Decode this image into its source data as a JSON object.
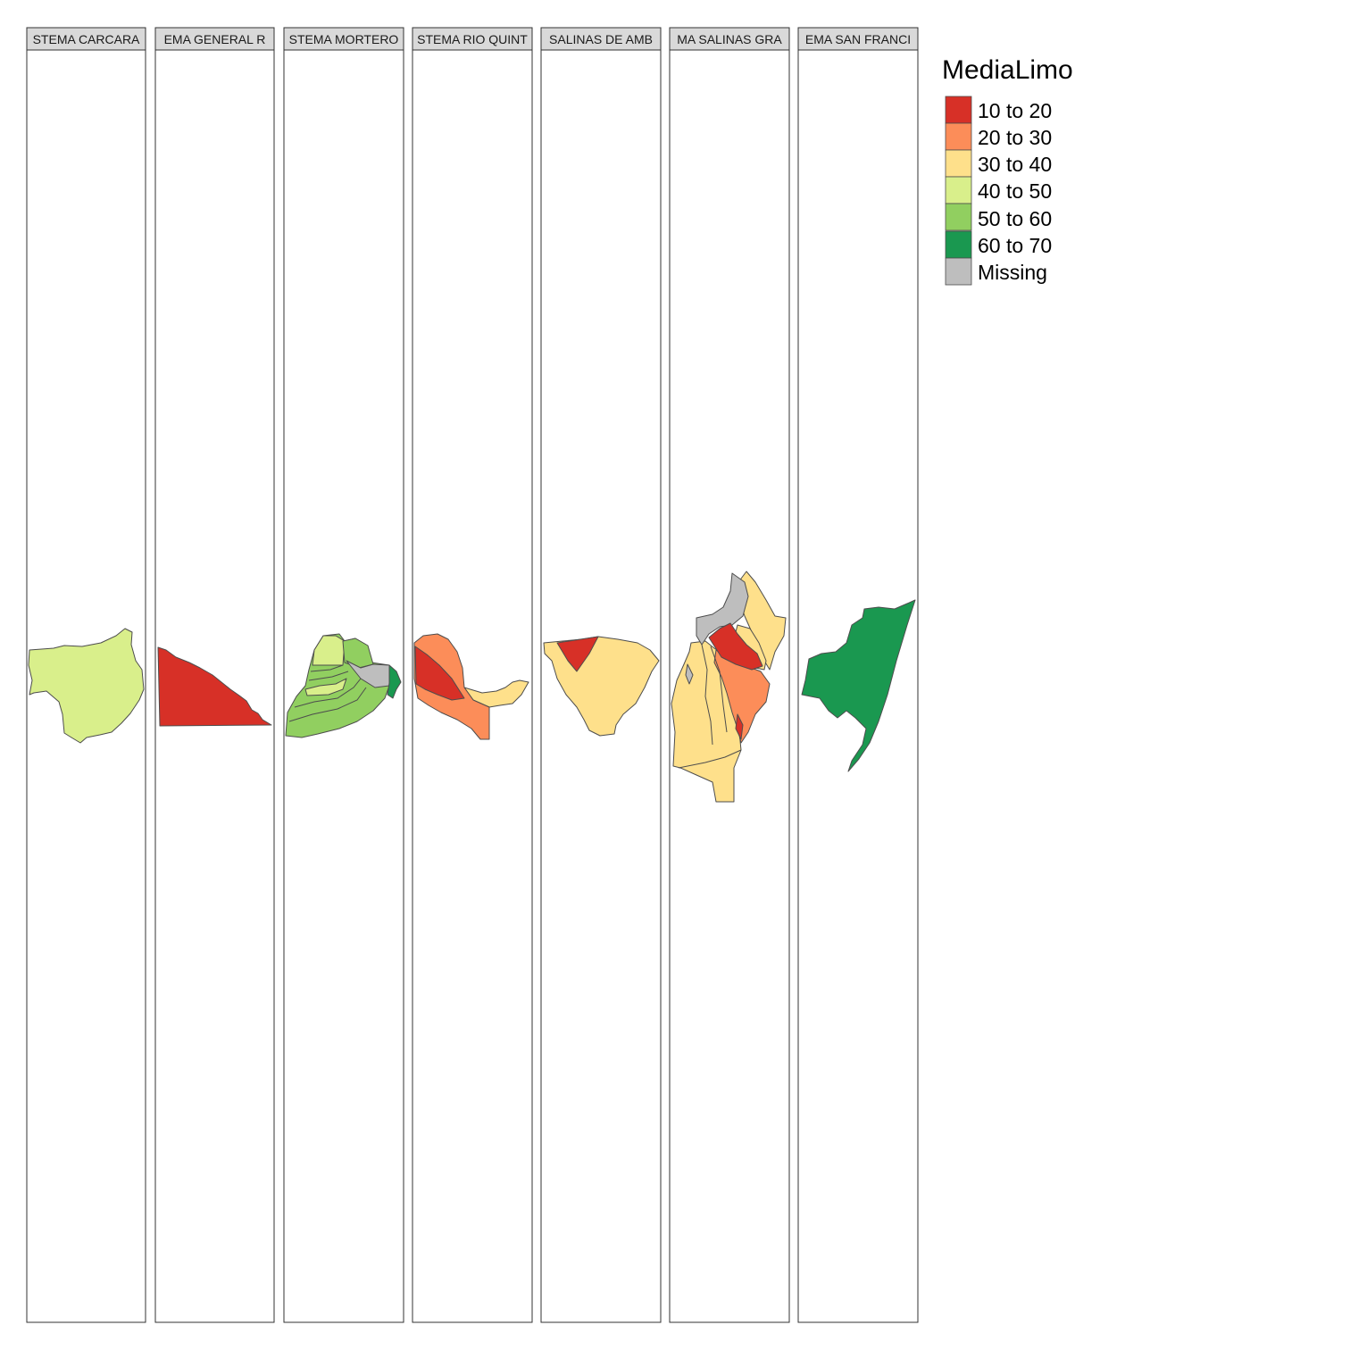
{
  "legend": {
    "title": "MediaLimo",
    "items": [
      {
        "label": "10 to 20",
        "color": "#d73027"
      },
      {
        "label": "20 to 30",
        "color": "#fc8d59"
      },
      {
        "label": "30 to 40",
        "color": "#fee08b"
      },
      {
        "label": "40 to 50",
        "color": "#d9ef8b"
      },
      {
        "label": "50 to 60",
        "color": "#91cf60"
      },
      {
        "label": "60 to 70",
        "color": "#1a9850"
      },
      {
        "label": "Missing",
        "color": "#bebebe"
      }
    ]
  },
  "panels": [
    {
      "label": "STEMA CARCARA"
    },
    {
      "label": "EMA GENERAL R"
    },
    {
      "label": "STEMA MORTERO"
    },
    {
      "label": "STEMA RIO QUINT"
    },
    {
      "label": "SALINAS DE AMB"
    },
    {
      "label": "MA SALINAS GRA"
    },
    {
      "label": "EMA SAN FRANCI"
    }
  ],
  "colors": {
    "strip_bg": "#d9d9d9",
    "frame": "#333333",
    "border": "#4d4d4d"
  }
}
